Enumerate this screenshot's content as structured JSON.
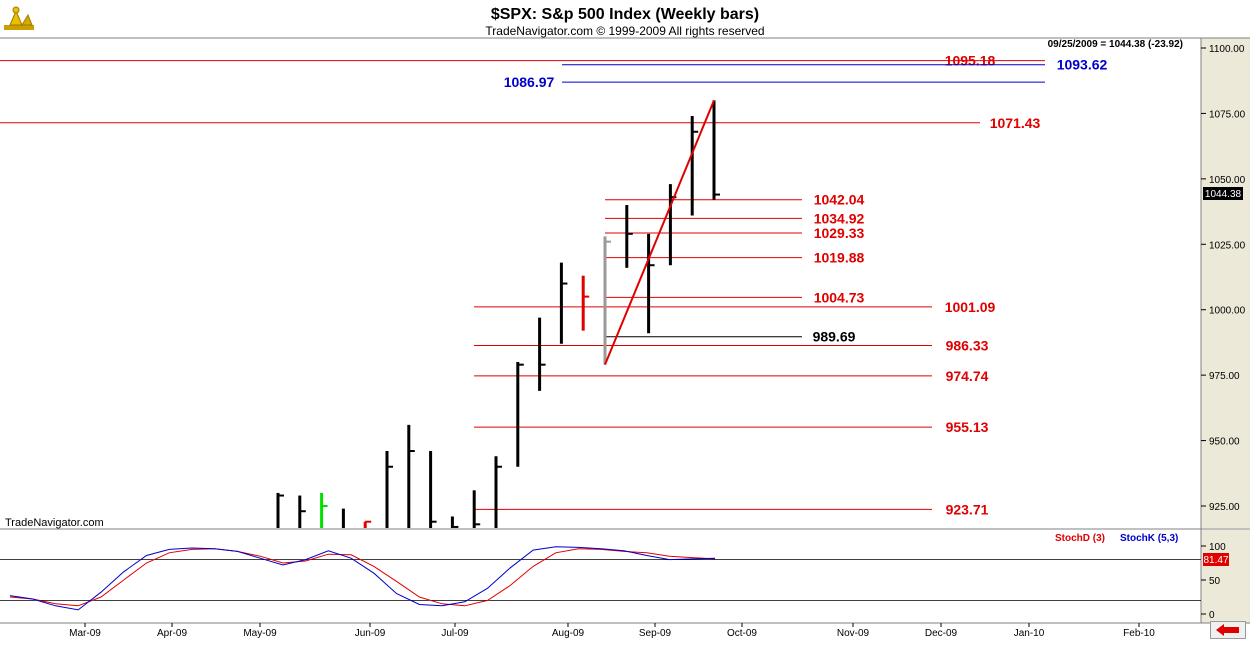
{
  "header": {
    "title": "$SPX:  S&p 500 Index  (Weekly bars)",
    "subtitle": "TradeNavigator.com © 1999-2009 All rights reserved",
    "info": "09/25/2009 = 1044.38 (-23.92)",
    "watermark": "TradeNavigator.com"
  },
  "colors": {
    "background": "#ffffff",
    "axis_bg": "#ece9d8",
    "level_red": "#e00000",
    "level_blue": "#0000cc",
    "bar": "#000000",
    "bar_up": "#00e000",
    "bar_down": "#e00000",
    "bar_gray": "#9a9a9a",
    "stoch_d": "#e00000",
    "stoch_k": "#0000cc"
  },
  "icons": {
    "logo": "trading-logo-icon",
    "nav": "red-left-arrow-icon"
  },
  "chart_data": [
    {
      "type": "bar",
      "title": "$SPX:  S&p 500 Index  (Weekly bars)",
      "subtitle": "TradeNavigator.com © 1999-2009 All rights reserved",
      "y_ticks": [
        925,
        950,
        975,
        1000,
        1025,
        1050,
        1075,
        1100
      ],
      "y_tick_labels": [
        "925.00",
        "950.00",
        "975.00",
        "1000.00",
        "1025.00",
        "1050.00",
        "1075.00",
        "1100.00"
      ],
      "ylim": [
        903,
        1113
      ],
      "x_months": [
        "Mar-09",
        "Apr-09",
        "May-09",
        "Jun-09",
        "Jul-09",
        "Aug-09",
        "Sep-09",
        "Oct-09",
        "Nov-09",
        "Dec-09",
        "Jan-10",
        "Feb-10"
      ],
      "last_price_label": "1044.38",
      "ohlc_bars": [
        {
          "week": 0,
          "high": 930,
          "low": 890,
          "close": 929,
          "color": "black"
        },
        {
          "week": 1,
          "high": 929,
          "low": 880,
          "close": 923,
          "color": "black"
        },
        {
          "week": 2,
          "high": 930,
          "low": 905,
          "close": 925,
          "color": "green"
        },
        {
          "week": 3,
          "high": 924,
          "low": 880,
          "close": 890,
          "color": "black"
        },
        {
          "week": 4,
          "high": 919,
          "low": 880,
          "close": 919,
          "color": "red"
        },
        {
          "week": 5,
          "high": 946,
          "low": 915,
          "close": 940,
          "color": "black"
        },
        {
          "week": 6,
          "high": 956,
          "low": 895,
          "close": 946,
          "color": "black"
        },
        {
          "week": 7,
          "high": 946,
          "low": 900,
          "close": 919,
          "color": "black"
        },
        {
          "week": 8,
          "high": 921,
          "low": 888,
          "close": 917,
          "color": "black"
        },
        {
          "week": 9,
          "high": 931,
          "low": 879,
          "close": 918,
          "color": "black"
        },
        {
          "week": 10,
          "high": 944,
          "low": 910,
          "close": 940,
          "color": "black"
        },
        {
          "week": 11,
          "high": 980,
          "low": 940,
          "close": 979,
          "color": "black"
        },
        {
          "week": 12,
          "high": 997,
          "low": 969,
          "close": 979,
          "color": "black"
        },
        {
          "week": 13,
          "high": 1018,
          "low": 987,
          "close": 1010,
          "color": "black"
        },
        {
          "week": 14,
          "high": 1013,
          "low": 992,
          "close": 1005,
          "color": "red"
        },
        {
          "week": 15,
          "high": 1028,
          "low": 979,
          "close": 1026,
          "color": "gray"
        },
        {
          "week": 16,
          "high": 1040,
          "low": 1016,
          "close": 1029,
          "color": "black"
        },
        {
          "week": 17,
          "high": 1029,
          "low": 991,
          "close": 1017,
          "color": "black"
        },
        {
          "week": 18,
          "high": 1048,
          "low": 1017,
          "close": 1043,
          "color": "black"
        },
        {
          "week": 19,
          "high": 1074,
          "low": 1036,
          "close": 1068,
          "color": "black"
        },
        {
          "week": 20,
          "high": 1080,
          "low": 1042,
          "close": 1044,
          "color": "black"
        }
      ],
      "levels": [
        {
          "value": 1095.18,
          "label": "1095.18",
          "color": "red"
        },
        {
          "value": 1093.62,
          "label": "1093.62",
          "color": "blue"
        },
        {
          "value": 1086.97,
          "label": "1086.97",
          "color": "blue"
        },
        {
          "value": 1071.43,
          "label": "1071.43",
          "color": "red"
        },
        {
          "value": 1042.04,
          "label": "1042.04",
          "color": "red"
        },
        {
          "value": 1034.92,
          "label": "1034.92",
          "color": "red"
        },
        {
          "value": 1029.33,
          "label": "1029.33",
          "color": "red"
        },
        {
          "value": 1019.88,
          "label": "1019.88",
          "color": "red"
        },
        {
          "value": 1004.73,
          "label": "1004.73",
          "color": "red"
        },
        {
          "value": 1001.09,
          "label": "1001.09",
          "color": "red"
        },
        {
          "value": 989.69,
          "label": "989.69",
          "color": "black"
        },
        {
          "value": 986.33,
          "label": "986.33",
          "color": "red"
        },
        {
          "value": 974.74,
          "label": "974.74",
          "color": "red"
        },
        {
          "value": 955.13,
          "label": "955.13",
          "color": "red"
        },
        {
          "value": 923.71,
          "label": "923.71",
          "color": "red"
        }
      ],
      "trendline": {
        "from": {
          "week": 15,
          "value": 979
        },
        "to": {
          "week": 20,
          "value": 1080
        }
      }
    },
    {
      "type": "line",
      "y_ticks": [
        0,
        50,
        100
      ],
      "y_tick_labels": [
        "0",
        "50",
        "100"
      ],
      "ylim": [
        -8,
        108
      ],
      "reference_lines": [
        20,
        80
      ],
      "current_value_label": "81.47",
      "series": [
        {
          "name": "StochD (3)",
          "color": "#e00000",
          "values": [
            25,
            22,
            15,
            12,
            25,
            50,
            75,
            90,
            95,
            96,
            92,
            85,
            75,
            78,
            88,
            87,
            70,
            48,
            25,
            15,
            12,
            20,
            42,
            70,
            90,
            96,
            95,
            92,
            90,
            85,
            83,
            81
          ]
        },
        {
          "name": "StochK (5,3)",
          "color": "#0000cc",
          "values": [
            27,
            22,
            12,
            6,
            32,
            62,
            86,
            95,
            97,
            96,
            92,
            82,
            72,
            80,
            93,
            82,
            60,
            30,
            14,
            12,
            18,
            38,
            68,
            94,
            99,
            98,
            96,
            93,
            86,
            80,
            81,
            82
          ]
        }
      ]
    }
  ]
}
